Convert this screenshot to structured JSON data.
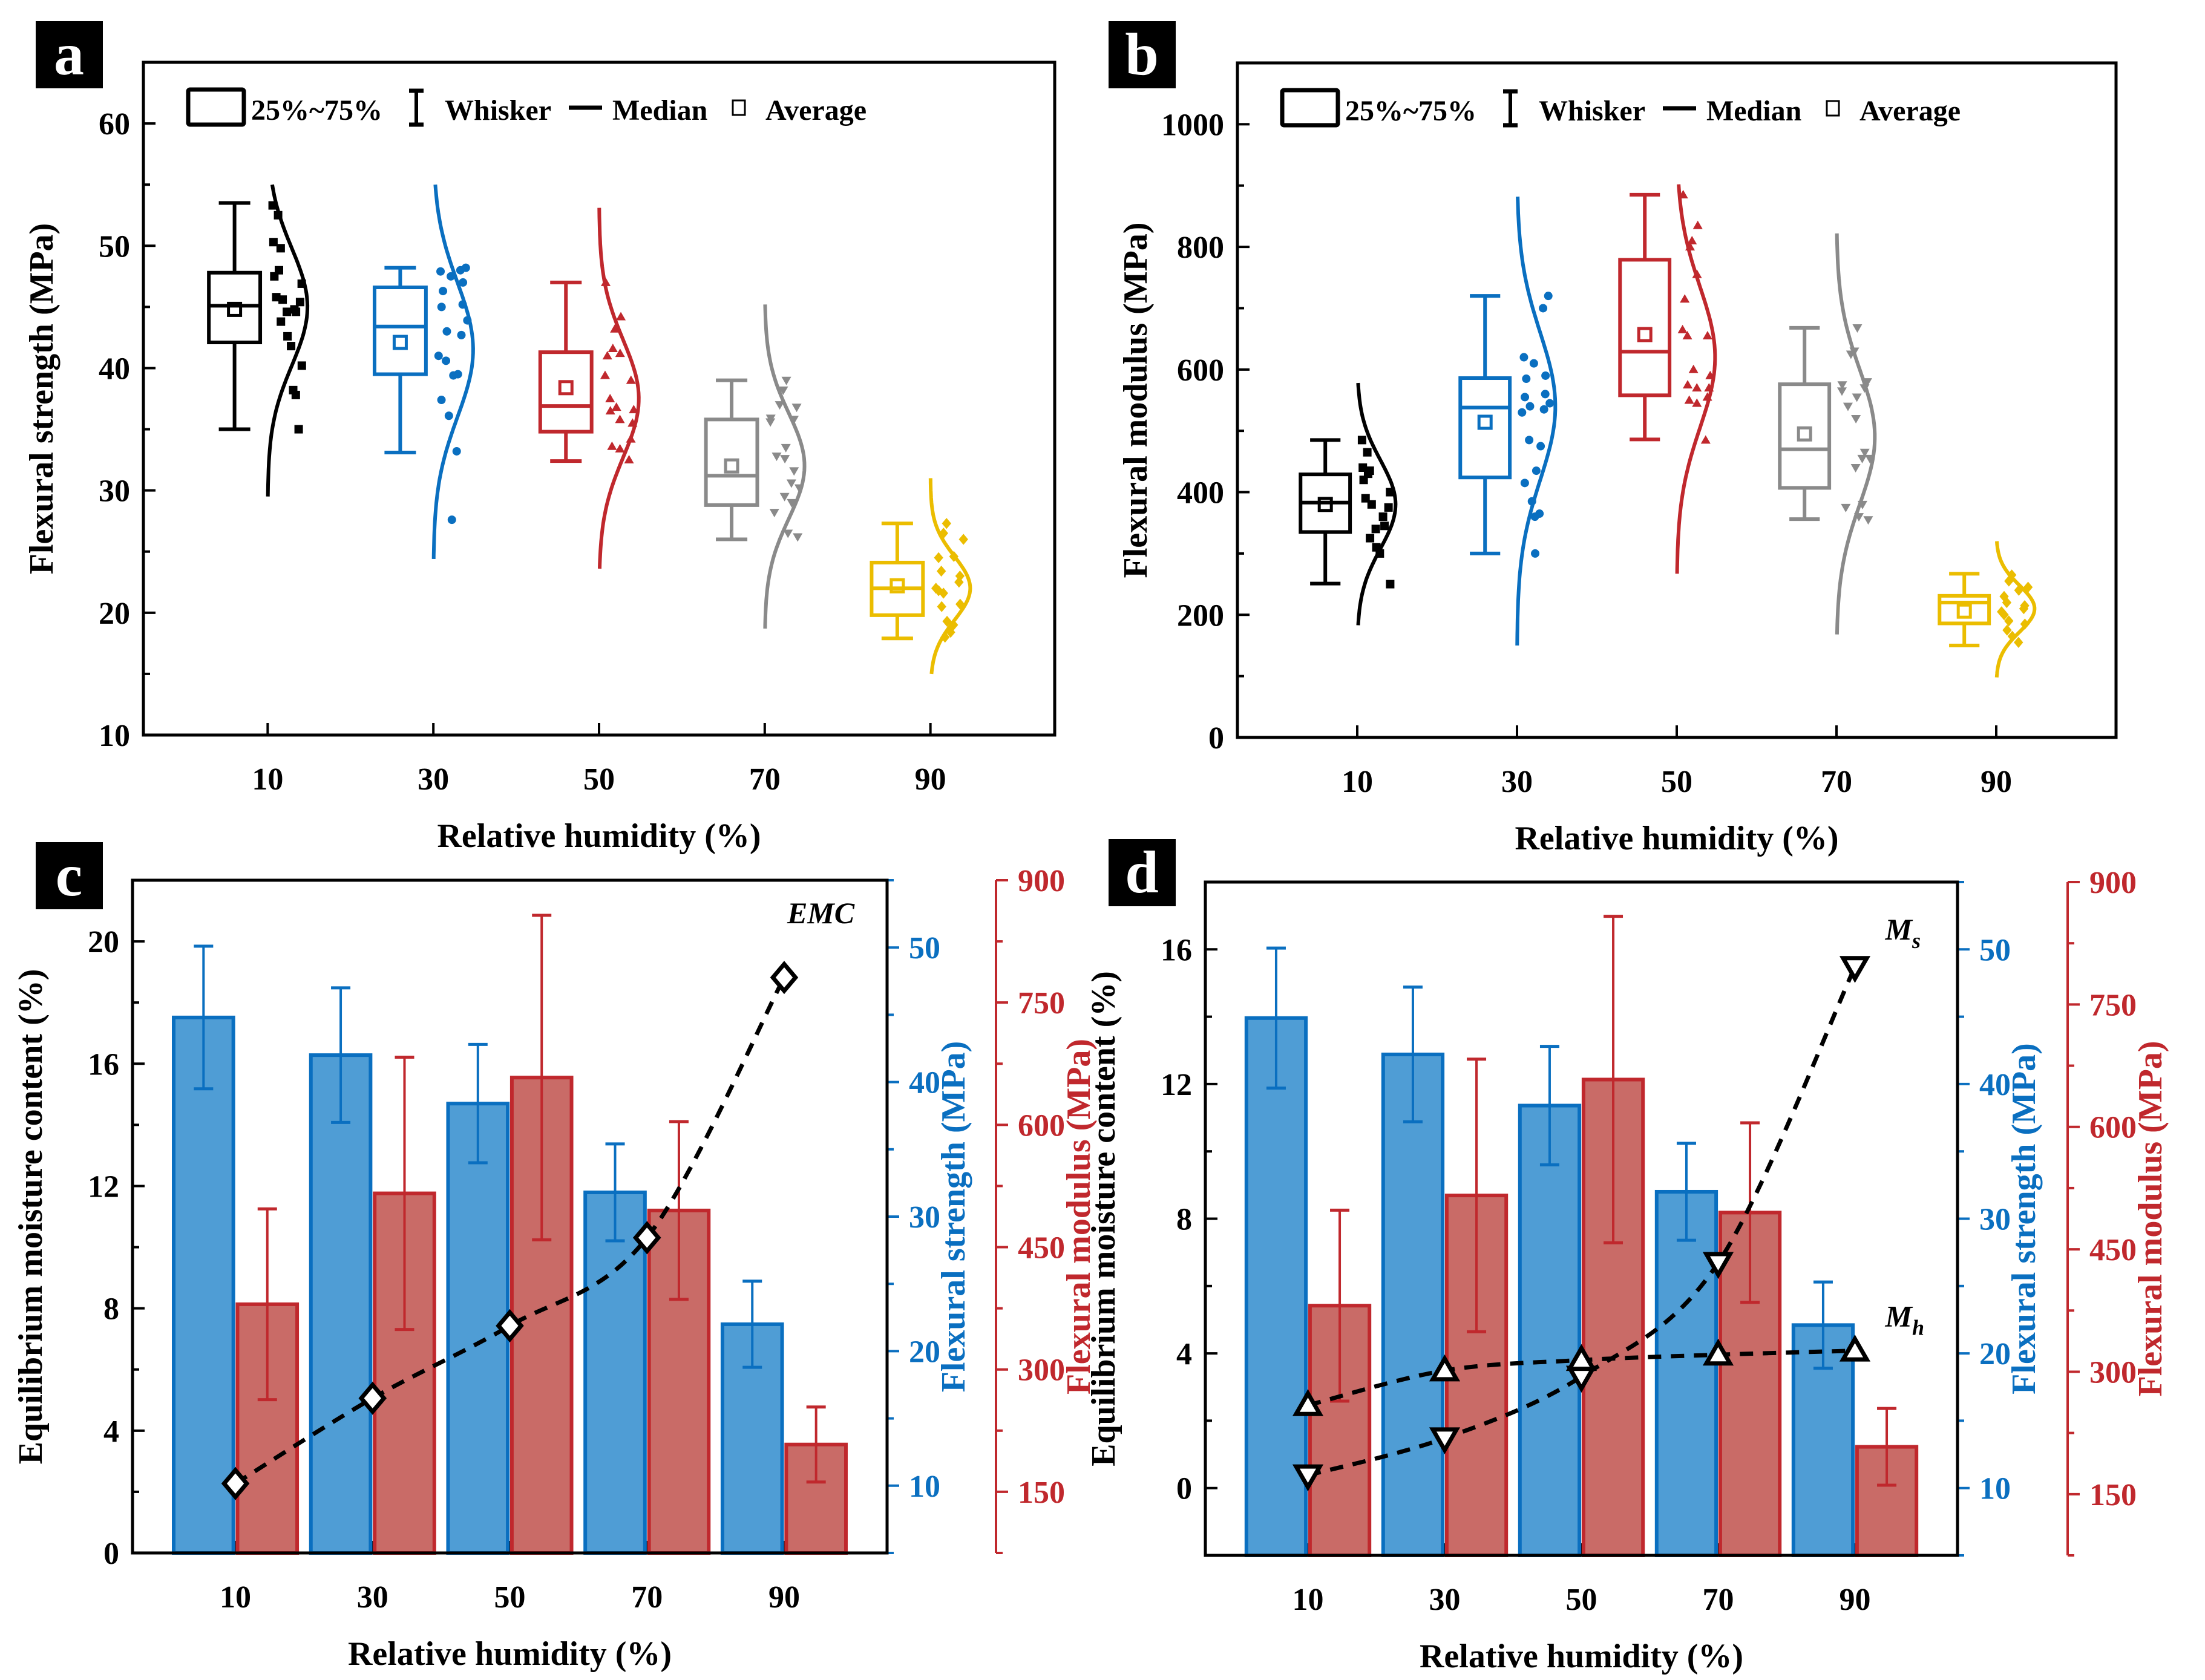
{
  "figure": {
    "panel_labels": [
      "a",
      "b",
      "c",
      "d"
    ],
    "colors": {
      "rh10": "#000000",
      "rh30": "#0a6fc0",
      "rh50": "#c0282d",
      "rh70": "#8a8a8a",
      "rh90": "#ebbd00",
      "strength_bar_fill": "#4f9dd5",
      "strength_bar_stroke": "#0a6fc0",
      "modulus_bar_fill": "#c96b67",
      "modulus_bar_stroke": "#c0282d",
      "strength_axis": "#0a6fc0",
      "modulus_axis": "#c0282d"
    }
  },
  "chart_data": [
    {
      "id": "a",
      "type": "box",
      "title": "",
      "xlabel": "Relative humidity (%)",
      "ylabel": "Flexural strength (MPa)",
      "xlim": [
        -5,
        105
      ],
      "ylim": [
        10,
        65
      ],
      "x_ticks": [
        10,
        30,
        50,
        70,
        90
      ],
      "y_ticks": [
        10,
        20,
        30,
        40,
        50,
        60
      ],
      "legend": {
        "placement": "top-left",
        "items": [
          {
            "symbol": "box",
            "label": "25%~75%"
          },
          {
            "symbol": "whisker",
            "label": "Whisker"
          },
          {
            "symbol": "line",
            "label": "Median"
          },
          {
            "symbol": "square",
            "label": "Average"
          }
        ]
      },
      "groups": [
        {
          "x": 10,
          "color_key": "rh10",
          "marker": "square",
          "whisker_low": 35.0,
          "q1": 42.1,
          "median": 45.1,
          "q3": 47.8,
          "whisker_high": 53.5,
          "mean": 44.8,
          "dist_range": [
            29.5,
            55.0
          ],
          "dist_peak": 45.0,
          "dist_sd": 4.8,
          "points": [
            53.3,
            52.5,
            50.3,
            49.8,
            48.0,
            47.5,
            46.9,
            45.8,
            45.6,
            45.4,
            44.8,
            44.6,
            44.6,
            43.8,
            42.6,
            41.8,
            40.2,
            38.2,
            37.8,
            35.0
          ]
        },
        {
          "x": 30,
          "color_key": "rh30",
          "marker": "circle",
          "whisker_low": 33.1,
          "q1": 39.5,
          "median": 43.4,
          "q3": 46.6,
          "whisker_high": 48.2,
          "mean": 42.1,
          "dist_range": [
            24.4,
            55.0
          ],
          "dist_peak": 41.5,
          "dist_sd": 5.5,
          "points": [
            48.2,
            48.0,
            47.9,
            47.5,
            47.0,
            46.3,
            45.2,
            45.0,
            43.9,
            43.0,
            42.7,
            41.0,
            40.6,
            39.5,
            39.4,
            37.4,
            36.1,
            33.2,
            27.6
          ]
        },
        {
          "x": 50,
          "color_key": "rh50",
          "marker": "triangle-up",
          "whisker_low": 32.4,
          "q1": 34.8,
          "median": 36.9,
          "q3": 41.3,
          "whisker_high": 47.0,
          "mean": 38.4,
          "dist_range": [
            23.6,
            53.1
          ],
          "dist_peak": 37.5,
          "dist_sd": 4.8,
          "points": [
            47.0,
            44.2,
            43.2,
            41.6,
            41.2,
            41.0,
            39.4,
            39.0,
            37.5,
            36.8,
            36.6,
            36.5,
            35.8,
            35.5,
            34.2,
            33.6,
            33.4,
            32.5
          ]
        },
        {
          "x": 70,
          "color_key": "rh70",
          "marker": "triangle-down",
          "whisker_low": 26.0,
          "q1": 28.8,
          "median": 31.2,
          "q3": 35.8,
          "whisker_high": 39.0,
          "mean": 32.0,
          "dist_range": [
            18.7,
            45.2
          ],
          "dist_peak": 32.0,
          "dist_sd": 4.3,
          "points": [
            39.0,
            38.2,
            37.0,
            36.8,
            35.9,
            35.8,
            35.6,
            33.5,
            32.8,
            32.6,
            31.6,
            30.6,
            30.2,
            29.5,
            29.0,
            28.2,
            26.5,
            26.2
          ]
        },
        {
          "x": 90,
          "color_key": "rh90",
          "marker": "diamond",
          "whisker_low": 17.9,
          "q1": 19.8,
          "median": 22.0,
          "q3": 24.1,
          "whisker_high": 27.3,
          "mean": 22.2,
          "dist_range": [
            15.0,
            31.0
          ],
          "dist_peak": 22.0,
          "dist_sd": 2.6,
          "points": [
            27.3,
            26.5,
            26.0,
            24.6,
            24.5,
            23.4,
            23.0,
            22.5,
            22.0,
            21.8,
            21.6,
            20.7,
            20.5,
            19.3,
            19.0,
            18.4,
            18.0
          ]
        }
      ]
    },
    {
      "id": "b",
      "type": "box",
      "title": "",
      "xlabel": "Relative humidity (%)",
      "ylabel": "Flexural modulus (MPa)",
      "xlim": [
        -5,
        105
      ],
      "ylim": [
        0,
        1100
      ],
      "x_ticks": [
        10,
        30,
        50,
        70,
        90
      ],
      "y_ticks": [
        0,
        200,
        400,
        600,
        800,
        1000
      ],
      "legend": {
        "placement": "top-left",
        "items": [
          {
            "symbol": "box",
            "label": "25%~75%"
          },
          {
            "symbol": "whisker",
            "label": "Whisker"
          },
          {
            "symbol": "line",
            "label": "Median"
          },
          {
            "symbol": "square",
            "label": "Average"
          }
        ]
      },
      "groups": [
        {
          "x": 10,
          "color_key": "rh10",
          "marker": "square",
          "whisker_low": 251,
          "q1": 335,
          "median": 383,
          "q3": 429,
          "whisker_high": 485,
          "mean": 380,
          "dist_range": [
            183,
            578
          ],
          "dist_peak": 380,
          "dist_sd": 72,
          "points": [
            485,
            465,
            440,
            435,
            430,
            420,
            400,
            390,
            380,
            375,
            360,
            345,
            340,
            325,
            310,
            300,
            250
          ]
        },
        {
          "x": 30,
          "color_key": "rh30",
          "marker": "circle",
          "whisker_low": 300,
          "q1": 424,
          "median": 538,
          "q3": 586,
          "whisker_high": 720,
          "mean": 514,
          "dist_range": [
            150,
            882
          ],
          "dist_peak": 540,
          "dist_sd": 120,
          "points": [
            720,
            700,
            620,
            610,
            590,
            585,
            560,
            555,
            545,
            540,
            535,
            530,
            485,
            475,
            435,
            415,
            385,
            365,
            360,
            300
          ]
        },
        {
          "x": 50,
          "color_key": "rh50",
          "marker": "triangle-up",
          "whisker_low": 486,
          "q1": 558,
          "median": 629,
          "q3": 779,
          "whisker_high": 885,
          "mean": 657,
          "dist_range": [
            267,
            902
          ],
          "dist_peak": 620,
          "dist_sd": 115,
          "points": [
            885,
            835,
            810,
            800,
            755,
            715,
            665,
            655,
            655,
            600,
            590,
            575,
            570,
            570,
            555,
            550,
            545,
            485
          ]
        },
        {
          "x": 70,
          "color_key": "rh70",
          "marker": "triangle-down",
          "whisker_low": 356,
          "q1": 407,
          "median": 470,
          "q3": 576,
          "whisker_high": 668,
          "mean": 495,
          "dist_range": [
            168,
            822
          ],
          "dist_peak": 490,
          "dist_sd": 110,
          "points": [
            668,
            630,
            625,
            580,
            575,
            570,
            565,
            555,
            540,
            520,
            465,
            455,
            455,
            440,
            380,
            375,
            360,
            355
          ]
        },
        {
          "x": 90,
          "color_key": "rh90",
          "marker": "diamond",
          "whisker_low": 150,
          "q1": 186,
          "median": 220,
          "q3": 231,
          "whisker_high": 267,
          "mean": 206,
          "dist_range": [
            98,
            320
          ],
          "dist_peak": 210,
          "dist_sd": 38,
          "points": [
            265,
            255,
            245,
            240,
            230,
            220,
            215,
            210,
            205,
            200,
            190,
            185,
            175,
            165,
            155
          ]
        }
      ]
    },
    {
      "id": "c",
      "type": "bar+line",
      "title": "",
      "xlabel": "Relative humidity (%)",
      "ylabel": "Equilibrium moisture content (%)",
      "y2label": "Flexural strength (MPa)",
      "y3label": "Flexural modulus (MPa)",
      "xlim": [
        -5,
        105
      ],
      "ylim": [
        0,
        22
      ],
      "y2lim": [
        5,
        55
      ],
      "y3lim": [
        75,
        900
      ],
      "x_ticks": [
        10,
        30,
        50,
        70,
        90
      ],
      "y_ticks": [
        0,
        4,
        8,
        12,
        16,
        20
      ],
      "y2_ticks": [
        10,
        20,
        30,
        40,
        50
      ],
      "y3_ticks": [
        150,
        300,
        450,
        600,
        750,
        900
      ],
      "categories": [
        10,
        30,
        50,
        70,
        90
      ],
      "series": [
        {
          "name": "Flexural strength",
          "axis": "y2",
          "type": "bar",
          "values": [
            44.8,
            42.0,
            38.4,
            31.8,
            22.0
          ],
          "errors": [
            5.3,
            5.0,
            4.4,
            3.6,
            3.2
          ]
        },
        {
          "name": "Flexural modulus",
          "axis": "y3",
          "type": "bar",
          "values": [
            380,
            516,
            658,
            495,
            208
          ],
          "errors": [
            117,
            167,
            199,
            109,
            46
          ]
        },
        {
          "name": "EMC",
          "axis": "y",
          "type": "line",
          "marker": "diamond",
          "style": "dashed",
          "values": [
            2.27,
            5.06,
            7.43,
            10.31,
            18.82
          ]
        }
      ],
      "annotations": [
        {
          "text": "EMC",
          "near": "series EMC, x=90"
        }
      ]
    },
    {
      "id": "d",
      "type": "bar+line",
      "title": "",
      "xlabel": "Relative humidity (%)",
      "ylabel": "Equilibrium moisture content (%)",
      "y2label": "Flexural strength (MPa)",
      "y3label": "Flexural modulus (MPa)",
      "xlim": [
        -5,
        105
      ],
      "ylim": [
        -2,
        18
      ],
      "y2lim": [
        5,
        55
      ],
      "y3lim": [
        75,
        900
      ],
      "x_ticks": [
        10,
        30,
        50,
        70,
        90
      ],
      "y_ticks": [
        0,
        4,
        8,
        12,
        16
      ],
      "y2_ticks": [
        10,
        20,
        30,
        40,
        50
      ],
      "y3_ticks": [
        150,
        300,
        450,
        600,
        750,
        900
      ],
      "categories": [
        10,
        30,
        50,
        70,
        90
      ],
      "series": [
        {
          "name": "Flexural strength",
          "axis": "y2",
          "type": "bar",
          "values": [
            44.9,
            42.2,
            38.4,
            32.0,
            22.1
          ],
          "errors": [
            5.2,
            5.0,
            4.4,
            3.6,
            3.2
          ]
        },
        {
          "name": "Flexural modulus",
          "axis": "y3",
          "type": "bar",
          "values": [
            381,
            516,
            658,
            495,
            208
          ],
          "errors": [
            117,
            167,
            200,
            110,
            47
          ]
        },
        {
          "name": "Ms",
          "axis": "y",
          "type": "line",
          "marker": "triangle-down",
          "style": "dashed",
          "values": [
            0.38,
            1.48,
            3.31,
            6.69,
            15.48
          ]
        },
        {
          "name": "Mh",
          "axis": "y",
          "type": "line",
          "marker": "triangle-up",
          "style": "dashed",
          "values": [
            2.46,
            3.49,
            3.8,
            3.96,
            4.08
          ]
        }
      ],
      "annotations": [
        {
          "text": "M",
          "sub": "s",
          "near": "series Ms, x=90"
        },
        {
          "text": "M",
          "sub": "h",
          "near": "series Mh, x=90"
        }
      ]
    }
  ]
}
